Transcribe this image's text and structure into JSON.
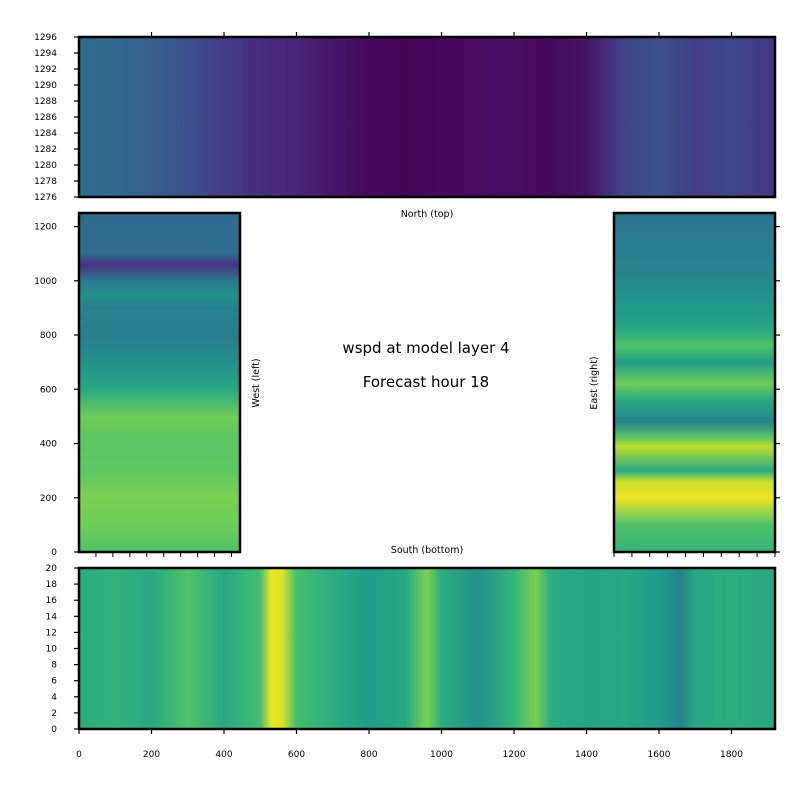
{
  "figure": {
    "title_line1": "wspd at model layer 4",
    "title_line2": "Forecast hour 18"
  },
  "chart_data": [
    {
      "type": "heatmap",
      "panel": "north",
      "label": "North (top)",
      "colormap": "viridis",
      "xlim": [
        0,
        1920
      ],
      "ylim": [
        1276,
        1296
      ],
      "xticks": [],
      "yticks": [
        1276,
        1278,
        1280,
        1282,
        1284,
        1286,
        1288,
        1290,
        1292,
        1294,
        1296
      ],
      "profile_x": [
        0,
        100,
        200,
        300,
        400,
        500,
        600,
        700,
        800,
        900,
        1000,
        1100,
        1200,
        1300,
        1400,
        1500,
        1600,
        1700,
        1800,
        1920
      ],
      "profile_v": [
        0.35,
        0.33,
        0.3,
        0.25,
        0.18,
        0.13,
        0.1,
        0.06,
        0.02,
        0.01,
        0.02,
        0.03,
        0.04,
        0.02,
        0.05,
        0.2,
        0.25,
        0.18,
        0.22,
        0.15
      ]
    },
    {
      "type": "heatmap",
      "panel": "south",
      "label": "South (bottom)",
      "colormap": "viridis",
      "xlim": [
        0,
        1920
      ],
      "ylim": [
        0,
        20
      ],
      "xticks": [
        0,
        200,
        400,
        600,
        800,
        1000,
        1200,
        1400,
        1600,
        1800
      ],
      "yticks": [
        0,
        2,
        4,
        6,
        8,
        10,
        12,
        14,
        16,
        18,
        20
      ],
      "profile_x": [
        0,
        100,
        200,
        300,
        400,
        500,
        530,
        560,
        600,
        700,
        800,
        900,
        960,
        1000,
        1100,
        1200,
        1260,
        1300,
        1400,
        1500,
        1600,
        1660,
        1700,
        1800,
        1920
      ],
      "profile_v": [
        0.62,
        0.65,
        0.6,
        0.72,
        0.6,
        0.7,
        0.97,
        0.95,
        0.7,
        0.62,
        0.55,
        0.6,
        0.8,
        0.62,
        0.5,
        0.66,
        0.8,
        0.62,
        0.58,
        0.6,
        0.55,
        0.45,
        0.6,
        0.62,
        0.6
      ]
    },
    {
      "type": "heatmap",
      "panel": "west",
      "label": "West (left)",
      "colormap": "viridis",
      "xlim": [
        0,
        450
      ],
      "ylim": [
        0,
        1250
      ],
      "xticks": [],
      "yticks": [
        0,
        200,
        400,
        600,
        800,
        1000,
        1200
      ],
      "profile_y": [
        0,
        100,
        200,
        300,
        400,
        500,
        600,
        700,
        800,
        900,
        950,
        1000,
        1060,
        1100,
        1200,
        1250
      ],
      "profile_v": [
        0.72,
        0.78,
        0.8,
        0.75,
        0.74,
        0.78,
        0.6,
        0.5,
        0.42,
        0.45,
        0.5,
        0.4,
        0.15,
        0.35,
        0.35,
        0.33
      ]
    },
    {
      "type": "heatmap",
      "panel": "east",
      "label": "East (right)",
      "colormap": "viridis",
      "xlim": [
        1470,
        1920
      ],
      "ylim": [
        0,
        1250
      ],
      "xticks": [],
      "yticks": [],
      "profile_y": [
        0,
        100,
        200,
        260,
        300,
        390,
        420,
        480,
        560,
        620,
        700,
        760,
        820,
        880,
        960,
        1040,
        1120,
        1200,
        1250
      ],
      "profile_v": [
        0.65,
        0.72,
        0.98,
        0.92,
        0.6,
        0.9,
        0.75,
        0.45,
        0.6,
        0.78,
        0.55,
        0.72,
        0.6,
        0.55,
        0.5,
        0.45,
        0.42,
        0.4,
        0.38
      ]
    }
  ]
}
